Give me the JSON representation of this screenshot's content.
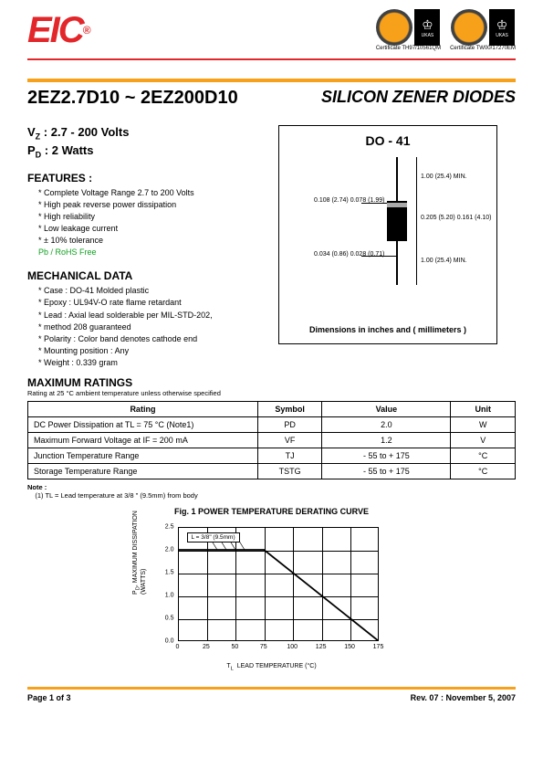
{
  "logo_text": "EIC",
  "certificates": [
    "Certificate  TH97/10561QM",
    "Certificate  TW00/17270EM"
  ],
  "badge_ukas": "UKAS",
  "title_left": "2EZ2.7D10 ~ 2EZ200D10",
  "title_right": "SILICON ZENER DIODES",
  "vz_line": "Vz : 2.7 - 200 Volts",
  "pd_line": "PD : 2 Watts",
  "features_head": "FEATURES :",
  "features": [
    "Complete Voltage Range 2.7 to 200 Volts",
    "High peak reverse power dissipation",
    "High reliability",
    "Low leakage current",
    "± 10% tolerance"
  ],
  "rohs_text": "Pb / RoHS Free",
  "mech_head": "MECHANICAL DATA",
  "mechanical": [
    "Case : DO-41 Molded plastic",
    "Epoxy : UL94V-O rate flame retardant",
    "Lead : Axial lead solderable per MIL-STD-202,",
    "           method 208 guaranteed",
    "Polarity : Color band denotes cathode end",
    "Mounting position : Any",
    "Weight : 0.339 gram"
  ],
  "pkg_title": "DO - 41",
  "pkg_caption": "Dimensions in inches and ( millimeters )",
  "pkg_dims": {
    "lead_len": "1.00 (25.4)\nMIN.",
    "body_len": "0.205 (5.20)\n0.161 (4.10)",
    "body_dia": "0.108 (2.74)\n0.078 (1.99)",
    "lead_dia": "0.034 (0.86)\n0.028 (0.71)"
  },
  "max_head": "MAXIMUM RATINGS",
  "max_note": "Rating at 25 °C ambient temperature unless otherwise specified",
  "table": {
    "headers": [
      "Rating",
      "Symbol",
      "Value",
      "Unit"
    ],
    "rows": [
      [
        "DC Power Dissipation at TL = 75 °C (Note1)",
        "PD",
        "2.0",
        "W"
      ],
      [
        "Maximum Forward Voltage at IF = 200 mA",
        "VF",
        "1.2",
        "V"
      ],
      [
        "Junction Temperature Range",
        "TJ",
        "- 55 to + 175",
        "°C"
      ],
      [
        "Storage Temperature Range",
        "TSTG",
        "- 55 to + 175",
        "°C"
      ]
    ]
  },
  "note_label": "Note :",
  "note_text": "(1) TL = Lead temperature at 3/8 \" (9.5mm) from body",
  "chart": {
    "title": "Fig. 1  POWER TEMPERATURE DERATING CURVE",
    "ylabel": "PD, MAXIMUM DISSIPATION\n(WATTS)",
    "xlabel": "TL  LEAD TEMPERATURE (°C)",
    "xlim": [
      0,
      175
    ],
    "xtick_step": 25,
    "ylim": [
      0,
      2.5
    ],
    "ytick_step": 0.5,
    "legend": "L = 3/8\" (9.5mm)",
    "points": [
      [
        0,
        2.0
      ],
      [
        25,
        2.0
      ],
      [
        50,
        2.0
      ],
      [
        75,
        2.0
      ],
      [
        175,
        0.0
      ]
    ],
    "line_color": "#000000",
    "bg_color": "#ffffff",
    "grid_color": "#000000"
  },
  "footer": {
    "left": "Page 1 of 3",
    "right": "Rev. 07 : November 5, 2007"
  }
}
